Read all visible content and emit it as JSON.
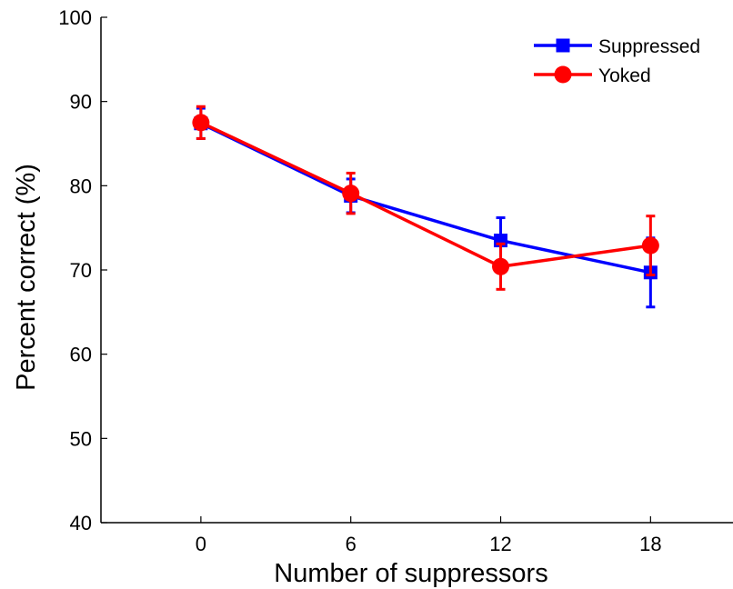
{
  "chart_data": {
    "type": "line",
    "title": "",
    "xlabel": "Number of suppressors",
    "ylabel": "Percent correct (%)",
    "x": [
      0,
      6,
      12,
      18
    ],
    "x_tick_labels": [
      "0",
      "6",
      "12",
      "18"
    ],
    "y_ticks": [
      40,
      50,
      60,
      70,
      80,
      90,
      100
    ],
    "y_tick_labels": [
      "40",
      "50",
      "60",
      "70",
      "80",
      "90",
      "100"
    ],
    "xlim": [
      -4,
      21.3
    ],
    "ylim": [
      40,
      100
    ],
    "grid": false,
    "legend_position": "top-right",
    "series": [
      {
        "name": "Suppressed",
        "color": "#0000ff",
        "marker": "square",
        "values": [
          87.4,
          78.8,
          73.5,
          69.7
        ],
        "error": [
          1.8,
          2.0,
          2.7,
          4.1
        ]
      },
      {
        "name": "Yoked",
        "color": "#ff0000",
        "marker": "circle",
        "values": [
          87.5,
          79.1,
          70.4,
          72.9
        ],
        "error": [
          1.9,
          2.4,
          2.7,
          3.5
        ]
      }
    ]
  }
}
